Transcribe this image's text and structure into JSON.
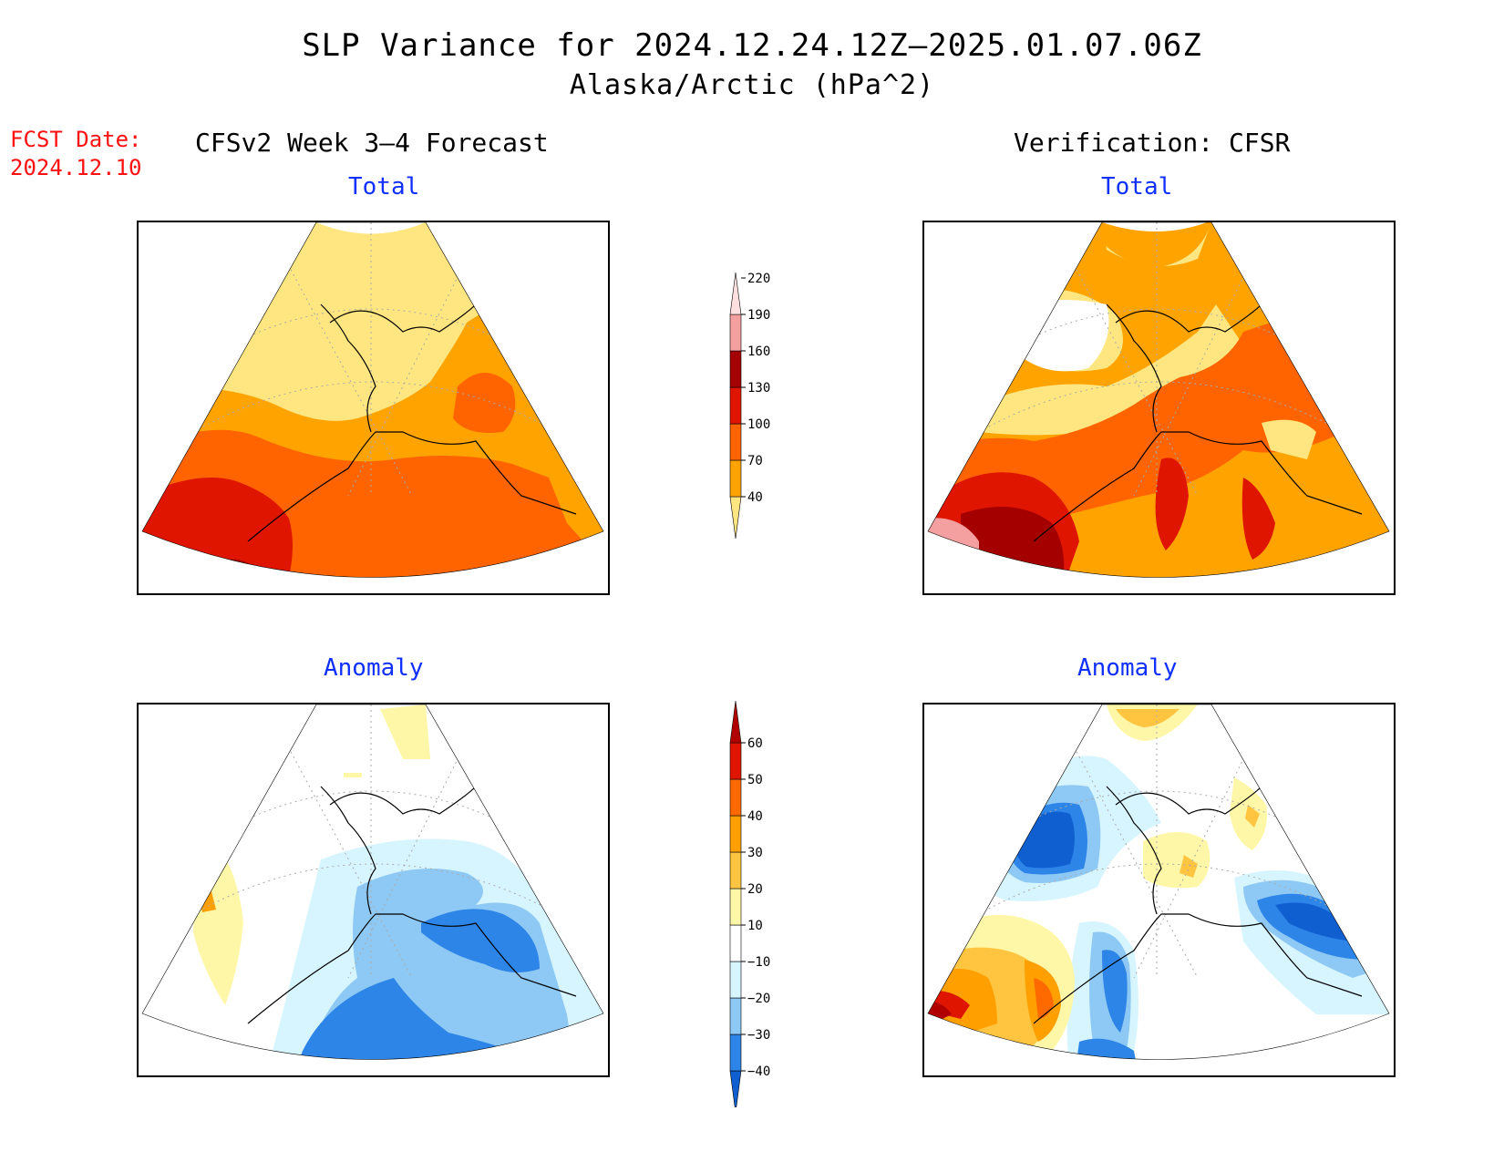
{
  "title": {
    "line1": "SLP Variance for 2024.12.24.12Z–2025.01.07.06Z",
    "line2": "Alaska/Arctic (hPa^2)"
  },
  "fcst_date": {
    "label": "FCST Date:",
    "value": "2024.12.10"
  },
  "columns": {
    "left": "CFSv2 Week 3–4 Forecast",
    "right": "Verification: CFSR"
  },
  "panels": {
    "total_label": "Total",
    "anomaly_label": "Anomaly"
  },
  "colorbar_total": {
    "ticks": [
      "40",
      "70",
      "100",
      "130",
      "160",
      "190",
      "220"
    ],
    "colors": [
      "#ffe680",
      "#ffa300",
      "#ff6400",
      "#e01500",
      "#a50000",
      "#f5a0a0",
      "#ffe0e0"
    ]
  },
  "colorbar_anomaly": {
    "ticks": [
      "−40",
      "−30",
      "−20",
      "−10",
      "10",
      "20",
      "30",
      "40",
      "50",
      "60"
    ],
    "colors": [
      "#0f5fd0",
      "#2e85e8",
      "#8ec9f5",
      "#d7f5ff",
      "#ffffff",
      "#fff7a8",
      "#ffc440",
      "#ffa000",
      "#ff6a00",
      "#e01500",
      "#b00000"
    ]
  }
}
